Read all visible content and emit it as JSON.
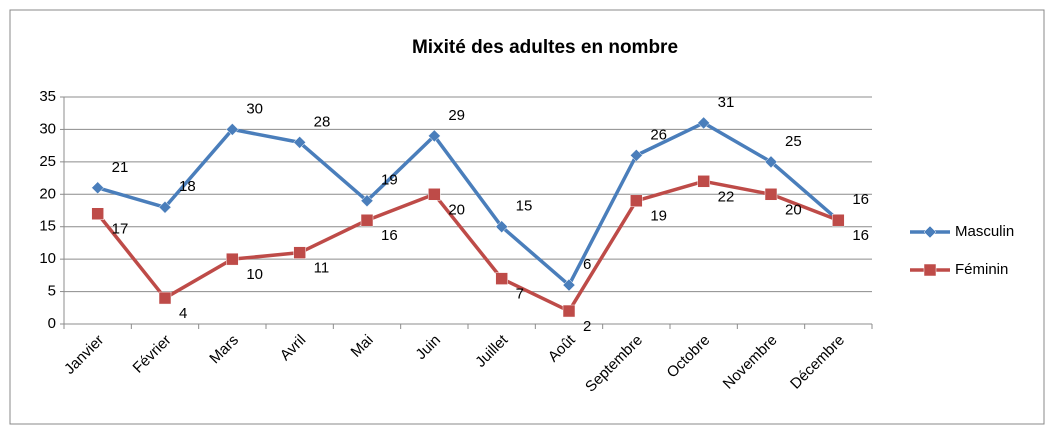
{
  "chart_data": {
    "type": "line",
    "title": "Mixité des adultes en nombre",
    "categories": [
      "Janvier",
      "Février",
      "Mars",
      "Avril",
      "Mai",
      "Juin",
      "Juillet",
      "Août",
      "Septembre",
      "Octobre",
      "Novembre",
      "Décembre"
    ],
    "series": [
      {
        "name": "Masculin",
        "color": "#4a7ebb",
        "marker": "diamond",
        "values": [
          21,
          18,
          30,
          28,
          19,
          29,
          15,
          6,
          26,
          31,
          25,
          16
        ]
      },
      {
        "name": "Féminin",
        "color": "#be4b48",
        "marker": "square",
        "values": [
          17,
          4,
          10,
          11,
          16,
          20,
          7,
          2,
          19,
          22,
          20,
          16
        ]
      }
    ],
    "ylim": [
      0,
      35
    ],
    "yticks": [
      0,
      5,
      10,
      15,
      20,
      25,
      30,
      35
    ],
    "grid": true,
    "legend": "right"
  }
}
